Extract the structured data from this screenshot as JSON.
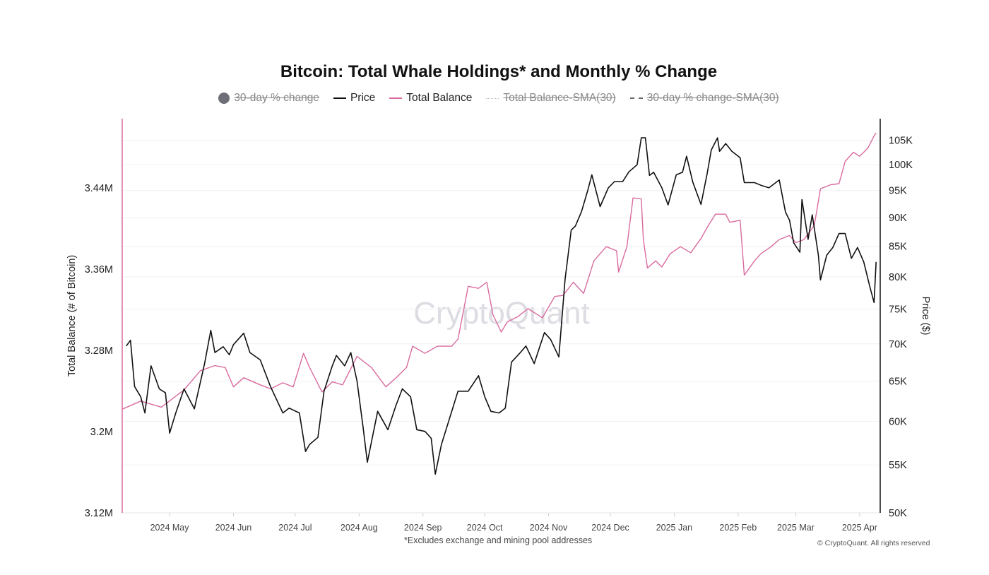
{
  "chart_data": {
    "type": "line",
    "title": "Bitcoin: Total Whale Holdings* and Monthly % Change",
    "footnote": "*Excludes exchange and mining pool addresses",
    "copyright": "© CryptoQuant. All rights reserved",
    "watermark": "CryptoQuant",
    "legend_position": "top",
    "legend": [
      {
        "name": "30-day % change",
        "visible": false,
        "marker": "circle",
        "color": "#6e6e78"
      },
      {
        "name": "Price",
        "visible": true,
        "marker": "line",
        "color": "#111111"
      },
      {
        "name": "Total Balance",
        "visible": true,
        "marker": "line",
        "color": "#d96b9f"
      },
      {
        "name": "Total Balance-SMA(30)",
        "visible": false,
        "marker": "dotted",
        "color": "#bbbbbb"
      },
      {
        "name": "30-day % change-SMA(30)",
        "visible": false,
        "marker": "dashed",
        "color": "#666666"
      }
    ],
    "xlim": [
      "2024-04-08",
      "2025-04-11"
    ],
    "x_ticks": [
      {
        "date": "2024-05-01",
        "label": "2024 May"
      },
      {
        "date": "2024-06-01",
        "label": "2024 Jun"
      },
      {
        "date": "2024-07-01",
        "label": "2024 Jul"
      },
      {
        "date": "2024-08-01",
        "label": "2024 Aug"
      },
      {
        "date": "2024-09-01",
        "label": "2024 Sep"
      },
      {
        "date": "2024-10-01",
        "label": "2024 Oct"
      },
      {
        "date": "2024-11-01",
        "label": "2024 Nov"
      },
      {
        "date": "2024-12-01",
        "label": "2024 Dec"
      },
      {
        "date": "2025-01-01",
        "label": "2025 Jan"
      },
      {
        "date": "2025-02-01",
        "label": "2025 Feb"
      },
      {
        "date": "2025-03-01",
        "label": "2025 Mar"
      },
      {
        "date": "2025-04-01",
        "label": "2025 Apr"
      }
    ],
    "y_left": {
      "label": "Total Balance (# of Bitcoin)",
      "scale": "linear",
      "ylim": [
        3120000,
        3508000
      ],
      "ticks": [
        {
          "v": 3120000,
          "label": "3.12M"
        },
        {
          "v": 3200000,
          "label": "3.2M"
        },
        {
          "v": 3280000,
          "label": "3.28M"
        },
        {
          "v": 3360000,
          "label": "3.36M"
        },
        {
          "v": 3440000,
          "label": "3.44M"
        }
      ]
    },
    "y_right": {
      "label": "Price ($)",
      "scale": "log",
      "ylim": [
        50000,
        109600
      ],
      "grid": true,
      "ticks": [
        {
          "v": 50000,
          "label": "50K"
        },
        {
          "v": 55000,
          "label": "55K"
        },
        {
          "v": 60000,
          "label": "60K"
        },
        {
          "v": 65000,
          "label": "65K"
        },
        {
          "v": 70000,
          "label": "70K"
        },
        {
          "v": 75000,
          "label": "75K"
        },
        {
          "v": 80000,
          "label": "80K"
        },
        {
          "v": 85000,
          "label": "85K"
        },
        {
          "v": 90000,
          "label": "90K"
        },
        {
          "v": 95000,
          "label": "95K"
        },
        {
          "v": 100000,
          "label": "100K"
        },
        {
          "v": 105000,
          "label": "105K"
        }
      ]
    },
    "series": [
      {
        "name": "Price",
        "axis": "right",
        "color": "#111111",
        "points": [
          [
            "2024-04-10",
            69700
          ],
          [
            "2024-04-12",
            70500
          ],
          [
            "2024-04-14",
            64300
          ],
          [
            "2024-04-17",
            63000
          ],
          [
            "2024-04-19",
            61000
          ],
          [
            "2024-04-22",
            67000
          ],
          [
            "2024-04-26",
            64000
          ],
          [
            "2024-04-29",
            63500
          ],
          [
            "2024-05-01",
            58600
          ],
          [
            "2024-05-04",
            61000
          ],
          [
            "2024-05-08",
            64000
          ],
          [
            "2024-05-13",
            61500
          ],
          [
            "2024-05-18",
            67300
          ],
          [
            "2024-05-21",
            71900
          ],
          [
            "2024-05-23",
            68800
          ],
          [
            "2024-05-27",
            69600
          ],
          [
            "2024-05-30",
            68500
          ],
          [
            "2024-06-01",
            69900
          ],
          [
            "2024-06-06",
            71500
          ],
          [
            "2024-06-09",
            68800
          ],
          [
            "2024-06-14",
            67800
          ],
          [
            "2024-06-19",
            64300
          ],
          [
            "2024-06-25",
            61000
          ],
          [
            "2024-06-28",
            61600
          ],
          [
            "2024-07-03",
            61000
          ],
          [
            "2024-07-06",
            56500
          ],
          [
            "2024-07-08",
            57300
          ],
          [
            "2024-07-12",
            58100
          ],
          [
            "2024-07-15",
            63700
          ],
          [
            "2024-07-19",
            67000
          ],
          [
            "2024-07-21",
            68400
          ],
          [
            "2024-07-25",
            67000
          ],
          [
            "2024-07-28",
            68800
          ],
          [
            "2024-07-31",
            65000
          ],
          [
            "2024-08-03",
            59200
          ],
          [
            "2024-08-05",
            55300
          ],
          [
            "2024-08-10",
            61200
          ],
          [
            "2024-08-15",
            59000
          ],
          [
            "2024-08-19",
            62000
          ],
          [
            "2024-08-22",
            64000
          ],
          [
            "2024-08-26",
            63000
          ],
          [
            "2024-08-29",
            59000
          ],
          [
            "2024-09-02",
            58800
          ],
          [
            "2024-09-05",
            58000
          ],
          [
            "2024-09-07",
            54000
          ],
          [
            "2024-09-10",
            57300
          ],
          [
            "2024-09-15",
            61200
          ],
          [
            "2024-09-18",
            63700
          ],
          [
            "2024-09-23",
            63700
          ],
          [
            "2024-09-28",
            65700
          ],
          [
            "2024-10-01",
            63000
          ],
          [
            "2024-10-04",
            61200
          ],
          [
            "2024-10-08",
            61000
          ],
          [
            "2024-10-11",
            61600
          ],
          [
            "2024-10-14",
            67500
          ],
          [
            "2024-10-18",
            68700
          ],
          [
            "2024-10-21",
            69700
          ],
          [
            "2024-10-25",
            67300
          ],
          [
            "2024-10-30",
            71600
          ],
          [
            "2024-11-02",
            70600
          ],
          [
            "2024-11-06",
            68200
          ],
          [
            "2024-11-09",
            79600
          ],
          [
            "2024-11-12",
            87800
          ],
          [
            "2024-11-14",
            88500
          ],
          [
            "2024-11-17",
            91100
          ],
          [
            "2024-11-20",
            95000
          ],
          [
            "2024-11-22",
            98000
          ],
          [
            "2024-11-26",
            92000
          ],
          [
            "2024-11-30",
            95500
          ],
          [
            "2024-12-03",
            96700
          ],
          [
            "2024-12-07",
            96700
          ],
          [
            "2024-12-10",
            98600
          ],
          [
            "2024-12-14",
            100000
          ],
          [
            "2024-12-16",
            105500
          ],
          [
            "2024-12-18",
            105500
          ],
          [
            "2024-12-20",
            97900
          ],
          [
            "2024-12-22",
            98500
          ],
          [
            "2024-12-26",
            95500
          ],
          [
            "2024-12-29",
            92300
          ],
          [
            "2025-01-02",
            98000
          ],
          [
            "2025-01-05",
            98500
          ],
          [
            "2025-01-07",
            101700
          ],
          [
            "2025-01-10",
            96600
          ],
          [
            "2025-01-14",
            92400
          ],
          [
            "2025-01-17",
            98300
          ],
          [
            "2025-01-19",
            103000
          ],
          [
            "2025-01-22",
            105500
          ],
          [
            "2025-01-23",
            102700
          ],
          [
            "2025-01-26",
            104300
          ],
          [
            "2025-01-29",
            102700
          ],
          [
            "2025-02-02",
            101400
          ],
          [
            "2025-02-04",
            96500
          ],
          [
            "2025-02-09",
            96500
          ],
          [
            "2025-02-12",
            96000
          ],
          [
            "2025-02-16",
            95500
          ],
          [
            "2025-02-21",
            97000
          ],
          [
            "2025-02-24",
            91000
          ],
          [
            "2025-02-26",
            89500
          ],
          [
            "2025-02-28",
            85600
          ],
          [
            "2025-03-03",
            84000
          ],
          [
            "2025-03-04",
            93300
          ],
          [
            "2025-03-07",
            86200
          ],
          [
            "2025-03-09",
            90500
          ],
          [
            "2025-03-12",
            83500
          ],
          [
            "2025-03-13",
            79500
          ],
          [
            "2025-03-16",
            83500
          ],
          [
            "2025-03-19",
            84800
          ],
          [
            "2025-03-22",
            87200
          ],
          [
            "2025-03-25",
            87200
          ],
          [
            "2025-03-28",
            83000
          ],
          [
            "2025-03-31",
            84800
          ],
          [
            "2025-04-03",
            82400
          ],
          [
            "2025-04-06",
            78400
          ],
          [
            "2025-04-08",
            76000
          ],
          [
            "2025-04-09",
            82400
          ]
        ]
      },
      {
        "name": "Total Balance",
        "axis": "left",
        "color": "#d96b9f",
        "points": [
          [
            "2024-04-08",
            3222000
          ],
          [
            "2024-04-17",
            3230000
          ],
          [
            "2024-04-27",
            3224000
          ],
          [
            "2024-05-08",
            3241000
          ],
          [
            "2024-05-16",
            3260000
          ],
          [
            "2024-05-23",
            3265000
          ],
          [
            "2024-05-28",
            3263000
          ],
          [
            "2024-06-01",
            3244000
          ],
          [
            "2024-06-06",
            3253000
          ],
          [
            "2024-06-14",
            3246000
          ],
          [
            "2024-06-19",
            3242000
          ],
          [
            "2024-06-25",
            3248000
          ],
          [
            "2024-06-30",
            3244000
          ],
          [
            "2024-07-05",
            3277000
          ],
          [
            "2024-07-08",
            3263000
          ],
          [
            "2024-07-14",
            3239000
          ],
          [
            "2024-07-19",
            3249000
          ],
          [
            "2024-07-24",
            3246000
          ],
          [
            "2024-07-31",
            3274000
          ],
          [
            "2024-08-07",
            3263000
          ],
          [
            "2024-08-14",
            3244000
          ],
          [
            "2024-08-19",
            3253000
          ],
          [
            "2024-08-24",
            3263000
          ],
          [
            "2024-08-27",
            3284000
          ],
          [
            "2024-09-02",
            3277000
          ],
          [
            "2024-09-08",
            3284000
          ],
          [
            "2024-09-15",
            3284000
          ],
          [
            "2024-09-18",
            3291000
          ],
          [
            "2024-09-23",
            3343000
          ],
          [
            "2024-09-28",
            3341000
          ],
          [
            "2024-10-02",
            3347000
          ],
          [
            "2024-10-05",
            3315000
          ],
          [
            "2024-10-09",
            3298000
          ],
          [
            "2024-10-12",
            3308000
          ],
          [
            "2024-10-17",
            3313000
          ],
          [
            "2024-10-22",
            3321000
          ],
          [
            "2024-10-29",
            3312000
          ],
          [
            "2024-11-04",
            3333000
          ],
          [
            "2024-11-08",
            3334000
          ],
          [
            "2024-11-13",
            3347000
          ],
          [
            "2024-11-18",
            3336000
          ],
          [
            "2024-11-23",
            3368000
          ],
          [
            "2024-11-29",
            3382000
          ],
          [
            "2024-12-04",
            3378000
          ],
          [
            "2024-12-05",
            3357000
          ],
          [
            "2024-12-09",
            3382000
          ],
          [
            "2024-12-12",
            3430000
          ],
          [
            "2024-12-16",
            3429000
          ],
          [
            "2024-12-17",
            3389000
          ],
          [
            "2024-12-19",
            3361000
          ],
          [
            "2024-12-23",
            3368000
          ],
          [
            "2024-12-26",
            3362000
          ],
          [
            "2024-12-30",
            3375000
          ],
          [
            "2025-01-04",
            3382000
          ],
          [
            "2025-01-09",
            3376000
          ],
          [
            "2025-01-14",
            3390000
          ],
          [
            "2025-01-17",
            3401000
          ],
          [
            "2025-01-21",
            3414000
          ],
          [
            "2025-01-26",
            3414000
          ],
          [
            "2025-01-28",
            3406000
          ],
          [
            "2025-02-02",
            3408000
          ],
          [
            "2025-02-04",
            3354000
          ],
          [
            "2025-02-09",
            3368000
          ],
          [
            "2025-02-12",
            3375000
          ],
          [
            "2025-02-17",
            3382000
          ],
          [
            "2025-02-21",
            3389000
          ],
          [
            "2025-02-26",
            3393000
          ],
          [
            "2025-03-01",
            3386000
          ],
          [
            "2025-03-05",
            3389000
          ],
          [
            "2025-03-10",
            3403000
          ],
          [
            "2025-03-13",
            3439000
          ],
          [
            "2025-03-18",
            3443000
          ],
          [
            "2025-03-22",
            3444000
          ],
          [
            "2025-03-25",
            3466000
          ],
          [
            "2025-03-29",
            3475000
          ],
          [
            "2025-04-01",
            3471000
          ],
          [
            "2025-04-05",
            3479000
          ],
          [
            "2025-04-08",
            3491000
          ],
          [
            "2025-04-09",
            3494000
          ]
        ]
      }
    ]
  }
}
